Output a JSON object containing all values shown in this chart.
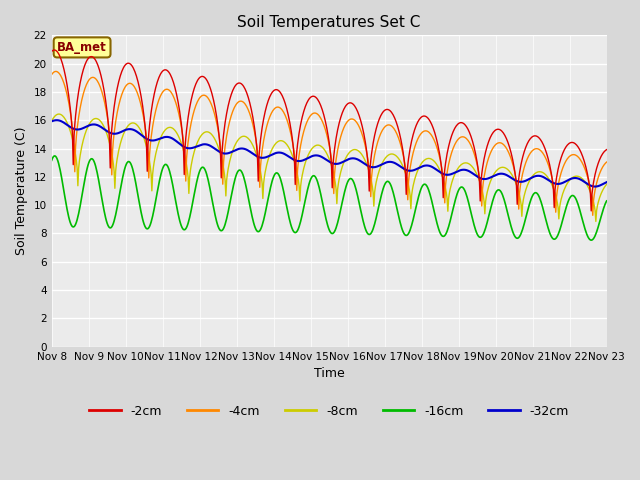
{
  "title": "Soil Temperatures Set C",
  "xlabel": "Time",
  "ylabel": "Soil Temperature (C)",
  "ylim": [
    0,
    22
  ],
  "yticks": [
    0,
    2,
    4,
    6,
    8,
    10,
    12,
    14,
    16,
    18,
    20,
    22
  ],
  "x_labels": [
    "Nov 8",
    "Nov 9",
    "Nov 10",
    "Nov 11",
    "Nov 12",
    "Nov 13",
    "Nov 14",
    "Nov 15",
    "Nov 16",
    "Nov 17",
    "Nov 18",
    "Nov 19",
    "Nov 20",
    "Nov 21",
    "Nov 22",
    "Nov 23"
  ],
  "legend_labels": [
    "-2cm",
    "-4cm",
    "-8cm",
    "-16cm",
    "-32cm"
  ],
  "line_colors": [
    "#dd0000",
    "#ff8800",
    "#cccc00",
    "#00bb00",
    "#0000cc"
  ],
  "bg_color": "#d8d8d8",
  "plot_bg_color": "#ebebeb",
  "annotation_text": "BA_met",
  "annotation_bg": "#ffff99",
  "annotation_border": "#886600"
}
